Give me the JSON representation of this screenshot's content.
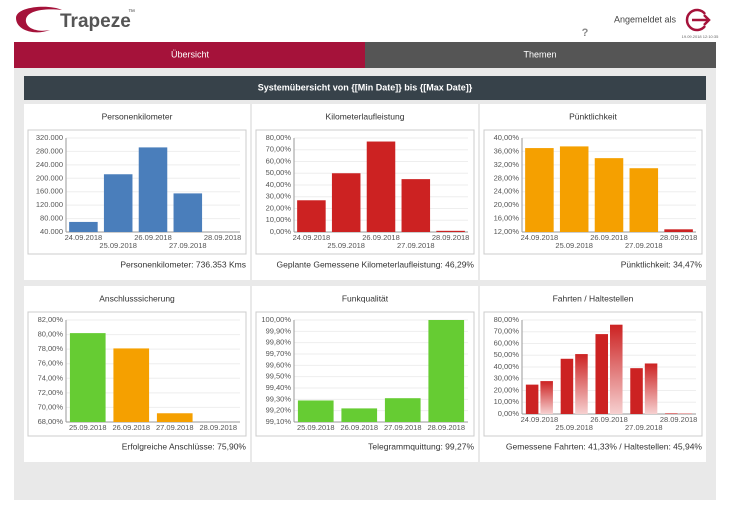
{
  "header": {
    "logo": "Trapeze",
    "tm": "™",
    "user_label": "Angemeldet als",
    "timestamp": "19.09.2018 12:10:35",
    "help": "?"
  },
  "tabs": [
    "Übersicht",
    "Themen"
  ],
  "panel_title": "Systemübersicht von {[Min Date]} bis {[Max Date]}",
  "charts": [
    {
      "type": "bar",
      "title": "Personenkilometer",
      "categories": [
        "24.09.2018",
        "25.09.2018",
        "26.09.2018",
        "27.09.2018",
        "28.09.2018"
      ],
      "values": [
        70000,
        212000,
        292000,
        155000,
        null
      ],
      "colors": [
        "#4a7ebb",
        "#4a7ebb",
        "#4a7ebb",
        "#4a7ebb",
        "#4a7ebb"
      ],
      "ylim": [
        40000,
        320000
      ],
      "yticks": [
        {
          "value": 40000,
          "label": "40.000"
        },
        {
          "value": 80000,
          "label": "80.000"
        },
        {
          "value": 120000,
          "label": "120.000"
        },
        {
          "value": 160000,
          "label": "160.000"
        },
        {
          "value": 200000,
          "label": "200.000"
        },
        {
          "value": 240000,
          "label": "240.000"
        },
        {
          "value": 280000,
          "label": "280.000"
        },
        {
          "value": 320000,
          "label": "320.000"
        }
      ],
      "footer": "Personenkilometer: 736.353 Kms"
    },
    {
      "type": "bar",
      "title": "Kilometerlaufleistung",
      "categories": [
        "24.09.2018",
        "25.09.2018",
        "26.09.2018",
        "27.09.2018",
        "28.09.2018"
      ],
      "values": [
        27,
        50,
        77,
        45,
        1
      ],
      "colors": [
        "#cc2222",
        "#cc2222",
        "#cc2222",
        "#cc2222",
        "#cc2222"
      ],
      "ylim": [
        0,
        80
      ],
      "yticks": [
        {
          "value": 0,
          "label": "0,00%"
        },
        {
          "value": 10,
          "label": "10,00%"
        },
        {
          "value": 20,
          "label": "20,00%"
        },
        {
          "value": 30,
          "label": "30,00%"
        },
        {
          "value": 40,
          "label": "40,00%"
        },
        {
          "value": 50,
          "label": "50,00%"
        },
        {
          "value": 60,
          "label": "60,00%"
        },
        {
          "value": 70,
          "label": "70,00%"
        },
        {
          "value": 80,
          "label": "80,00%"
        }
      ],
      "footer": "Geplante Gemessene Kilometerlaufleistung: 46,29%"
    },
    {
      "type": "bar",
      "title": "Pünktlichkeit",
      "categories": [
        "24.09.2018",
        "25.09.2018",
        "26.09.2018",
        "27.09.2018",
        "28.09.2018"
      ],
      "values": [
        37,
        37.5,
        34,
        31,
        12.8
      ],
      "colors": [
        "#f5a000",
        "#f5a000",
        "#f5a000",
        "#f5a000",
        "#cc2222"
      ],
      "ylim": [
        12,
        40
      ],
      "yticks": [
        {
          "value": 12,
          "label": "12,00%"
        },
        {
          "value": 16,
          "label": "16,00%"
        },
        {
          "value": 20,
          "label": "20,00%"
        },
        {
          "value": 24,
          "label": "24,00%"
        },
        {
          "value": 28,
          "label": "28,00%"
        },
        {
          "value": 32,
          "label": "32,00%"
        },
        {
          "value": 36,
          "label": "36,00%"
        },
        {
          "value": 40,
          "label": "40,00%"
        }
      ],
      "footer": "Pünktlichkeit: 34,47%"
    },
    {
      "type": "bar",
      "title": "Anschlusssicherung",
      "categories": [
        "25.09.2018",
        "26.09.2018",
        "27.09.2018",
        "28.09.2018"
      ],
      "values": [
        80.2,
        78.1,
        69.2,
        null
      ],
      "colors": [
        "#66cc33",
        "#f5a000",
        "#f5a000",
        "#f5a000"
      ],
      "ylim": [
        68,
        82
      ],
      "yticks": [
        {
          "value": 68,
          "label": "68,00%"
        },
        {
          "value": 70,
          "label": "70,00%"
        },
        {
          "value": 72,
          "label": "72,00%"
        },
        {
          "value": 74,
          "label": "74,00%"
        },
        {
          "value": 76,
          "label": "76,00%"
        },
        {
          "value": 78,
          "label": "78,00%"
        },
        {
          "value": 80,
          "label": "80,00%"
        },
        {
          "value": 82,
          "label": "82,00%"
        }
      ],
      "footer": "Erfolgreiche Anschlüsse: 75,90%"
    },
    {
      "type": "bar",
      "title": "Funkqualität",
      "categories": [
        "25.09.2018",
        "26.09.2018",
        "27.09.2018",
        "28.09.2018"
      ],
      "values": [
        99.29,
        99.22,
        99.31,
        100
      ],
      "colors": [
        "#66cc33",
        "#66cc33",
        "#66cc33",
        "#66cc33"
      ],
      "ylim": [
        99.1,
        100
      ],
      "yticks": [
        {
          "value": 99.1,
          "label": "99,10%"
        },
        {
          "value": 99.2,
          "label": "99,20%"
        },
        {
          "value": 99.3,
          "label": "99,30%"
        },
        {
          "value": 99.4,
          "label": "99,40%"
        },
        {
          "value": 99.5,
          "label": "99,50%"
        },
        {
          "value": 99.6,
          "label": "99,60%"
        },
        {
          "value": 99.7,
          "label": "99,70%"
        },
        {
          "value": 99.8,
          "label": "99,80%"
        },
        {
          "value": 99.9,
          "label": "99,90%"
        },
        {
          "value": 100,
          "label": "100,00%"
        }
      ],
      "footer": "Telegrammquittung: 99,27%"
    },
    {
      "type": "grouped-bar",
      "title": "Fahrten / Haltestellen",
      "categories": [
        "24.09.2018",
        "25.09.2018",
        "26.09.2018",
        "27.09.2018",
        "28.09.2018"
      ],
      "series": [
        {
          "color": "#cc2222",
          "values": [
            25,
            47,
            68,
            39,
            0.5
          ]
        },
        {
          "color": "#e0505a",
          "values": [
            28,
            51,
            76,
            43,
            0.5
          ]
        }
      ],
      "ylim": [
        0,
        80
      ],
      "yticks": [
        {
          "value": 0,
          "label": "0,00%"
        },
        {
          "value": 10,
          "label": "10,00%"
        },
        {
          "value": 20,
          "label": "20,00%"
        },
        {
          "value": 30,
          "label": "30,00%"
        },
        {
          "value": 40,
          "label": "40,00%"
        },
        {
          "value": 50,
          "label": "50,00%"
        },
        {
          "value": 60,
          "label": "60,00%"
        },
        {
          "value": 70,
          "label": "70,00%"
        },
        {
          "value": 80,
          "label": "80,00%"
        }
      ],
      "footer": "Gemessene Fahrten: 41,33% / Haltestellen: 45,94%"
    }
  ]
}
